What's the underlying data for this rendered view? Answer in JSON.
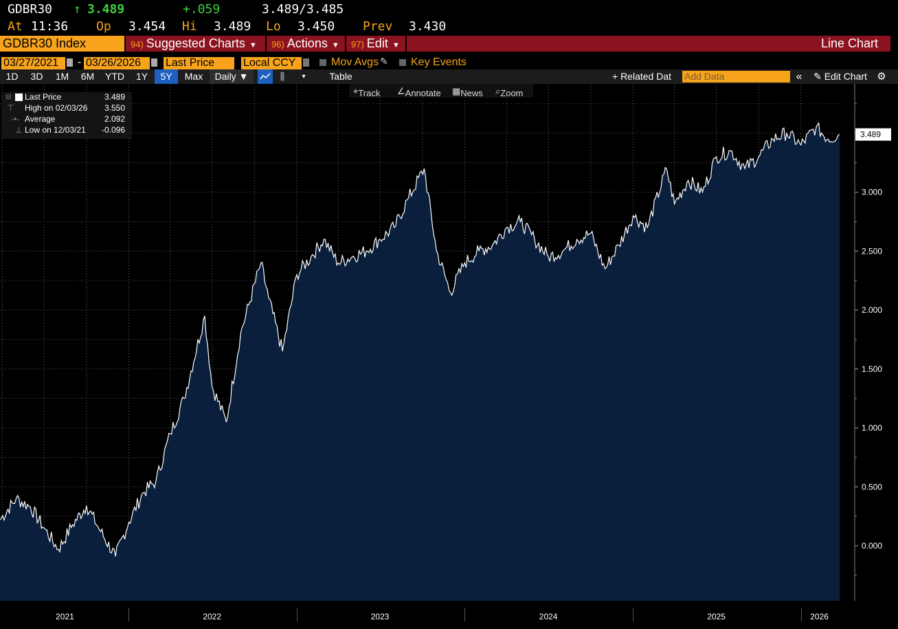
{
  "quote": {
    "ticker": "GDBR30",
    "arrow": "↑",
    "last": "3.489",
    "change": "+.059",
    "bid_ask": "3.489/3.485",
    "time_label": "At",
    "time": "11:36",
    "open_label": "Op",
    "open": "3.454",
    "high_label": "Hi",
    "high": "3.489",
    "low_label": "Lo",
    "low": "3.450",
    "prev_label": "Prev",
    "prev": "3.430"
  },
  "menubar": {
    "security": "GDBR30 Index",
    "suggested": {
      "num": "94)",
      "label": "Suggested Charts"
    },
    "actions": {
      "num": "96)",
      "label": "Actions"
    },
    "edit": {
      "num": "97)",
      "label": "Edit"
    },
    "title": "Line Chart"
  },
  "toolbar": {
    "start_date": "03/27/2021",
    "dash": "-",
    "end_date": "03/26/2026",
    "field": "Last Price",
    "currency": "Local CCY",
    "mov_avgs": "Mov Avgs",
    "key_events": "Key Events",
    "periods": [
      "1D",
      "3D",
      "1M",
      "6M",
      "YTD",
      "1Y",
      "5Y",
      "Max"
    ],
    "selected_period": "5Y",
    "frequency": "Daily ▼",
    "table": "Table",
    "related": "+ Related Dat",
    "add_data": "Add Data",
    "collapse": "«",
    "edit_chart": "Edit Chart"
  },
  "subtools": {
    "track": "Track",
    "annotate": "Annotate",
    "news": "News",
    "zoom": "Zoom"
  },
  "legend": {
    "last_label": "Last Price",
    "last_value": "3.489",
    "high_label": "High on 02/03/26",
    "high_value": "3.550",
    "avg_label": "Average",
    "avg_value": "2.092",
    "low_label": "Low on 12/03/21",
    "low_value": "-0.096"
  },
  "colors": {
    "accent": "#f7a31c",
    "menubar": "#8b1320",
    "area_fill": "#0a1f3c",
    "up": "#40d040"
  },
  "chart_data": {
    "type": "area",
    "series": [
      {
        "name": "GDBR30 Index",
        "x": [
          "2021-03-27",
          "2021-05-01",
          "2021-06-01",
          "2021-07-01",
          "2021-08-01",
          "2021-09-01",
          "2021-10-01",
          "2021-11-01",
          "2021-12-03",
          "2022-01-01",
          "2022-02-01",
          "2022-03-01",
          "2022-04-01",
          "2022-05-01",
          "2022-06-15",
          "2022-07-01",
          "2022-08-01",
          "2022-09-01",
          "2022-10-15",
          "2022-11-01",
          "2022-12-01",
          "2023-01-01",
          "2023-02-01",
          "2023-03-01",
          "2023-04-01",
          "2023-05-01",
          "2023-06-01",
          "2023-07-01",
          "2023-08-01",
          "2023-09-01",
          "2023-10-05",
          "2023-11-01",
          "2023-12-01",
          "2024-01-01",
          "2024-02-01",
          "2024-03-01",
          "2024-04-01",
          "2024-05-01",
          "2024-06-01",
          "2024-07-01",
          "2024-08-01",
          "2024-09-01",
          "2024-10-01",
          "2024-11-01",
          "2024-12-01",
          "2025-01-01",
          "2025-02-01",
          "2025-03-15",
          "2025-04-01",
          "2025-05-01",
          "2025-06-01",
          "2025-07-01",
          "2025-08-01",
          "2025-09-01",
          "2025-10-01",
          "2025-11-01",
          "2025-12-01",
          "2026-01-01",
          "2026-02-03",
          "2026-03-01",
          "2026-03-26"
        ],
        "y": [
          0.22,
          0.4,
          0.33,
          0.15,
          -0.03,
          0.18,
          0.34,
          0.12,
          -0.09,
          0.2,
          0.45,
          0.55,
          0.95,
          1.25,
          1.95,
          1.35,
          1.05,
          1.8,
          2.4,
          2.1,
          1.65,
          2.3,
          2.45,
          2.6,
          2.4,
          2.45,
          2.5,
          2.6,
          2.7,
          2.95,
          3.2,
          2.5,
          2.15,
          2.4,
          2.5,
          2.55,
          2.7,
          2.75,
          2.6,
          2.45,
          2.5,
          2.6,
          2.65,
          2.35,
          2.55,
          2.8,
          2.7,
          3.2,
          2.9,
          3.1,
          3.0,
          3.3,
          3.35,
          3.2,
          3.3,
          3.45,
          3.5,
          3.4,
          3.55,
          3.45,
          3.489
        ]
      }
    ],
    "y_ticks": [
      "0.000",
      "0.500",
      "1.000",
      "1.500",
      "2.000",
      "2.500",
      "3.000"
    ],
    "x_labels": [
      "2021",
      "2022",
      "2023",
      "2024",
      "2025",
      "2026"
    ],
    "last_value_label": "3.489",
    "ylim": [
      -0.45,
      3.85
    ],
    "grid": true
  }
}
